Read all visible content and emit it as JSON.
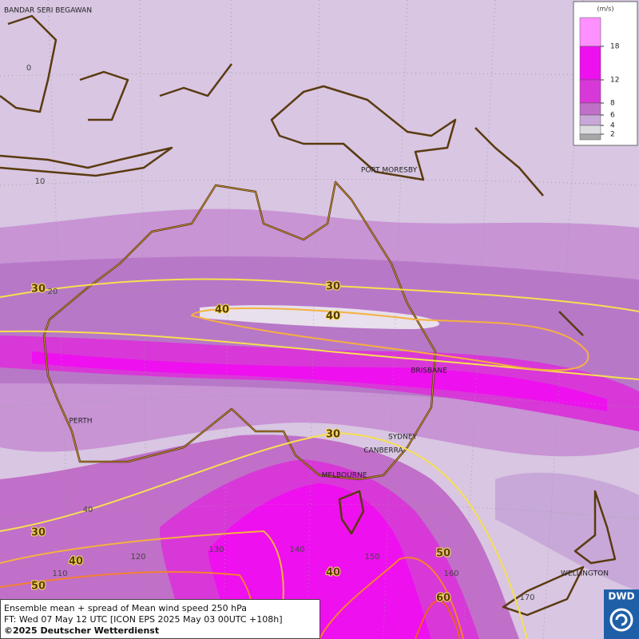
{
  "map": {
    "cities": [
      "BANDAR SERI BEGAWAN",
      "PORT MORESBY",
      "BRISBANE",
      "PERTH",
      "SYDNEY",
      "CANBERRA",
      "MELBOURNE",
      "WELLINGTON"
    ],
    "graticule_labels": [
      "0",
      "10",
      "20",
      "40",
      "110",
      "120",
      "130",
      "140",
      "150",
      "160",
      "170"
    ],
    "contour_labels": [
      "30",
      "30",
      "30",
      "30",
      "40",
      "40",
      "40",
      "40",
      "50",
      "50",
      "60"
    ],
    "legend": {
      "unit": "(m/s)",
      "ticks": [
        "18",
        "12",
        "8",
        "6",
        "4",
        "2"
      ],
      "colors": [
        "#ff90ff",
        "#ee10ee",
        "#d838d8",
        "#c070c8",
        "#c8a8d8",
        "#dcdce0",
        "#a8a8a8"
      ]
    },
    "caption": [
      "Ensemble mean + spread of Mean wind speed 250 hPa",
      "FT: Wed 07 May 12 UTC [ICON EPS 2025 May 03 00UTC +108h]",
      "©2025 Deutscher Wetterdienst"
    ],
    "logo": "DWD"
  }
}
